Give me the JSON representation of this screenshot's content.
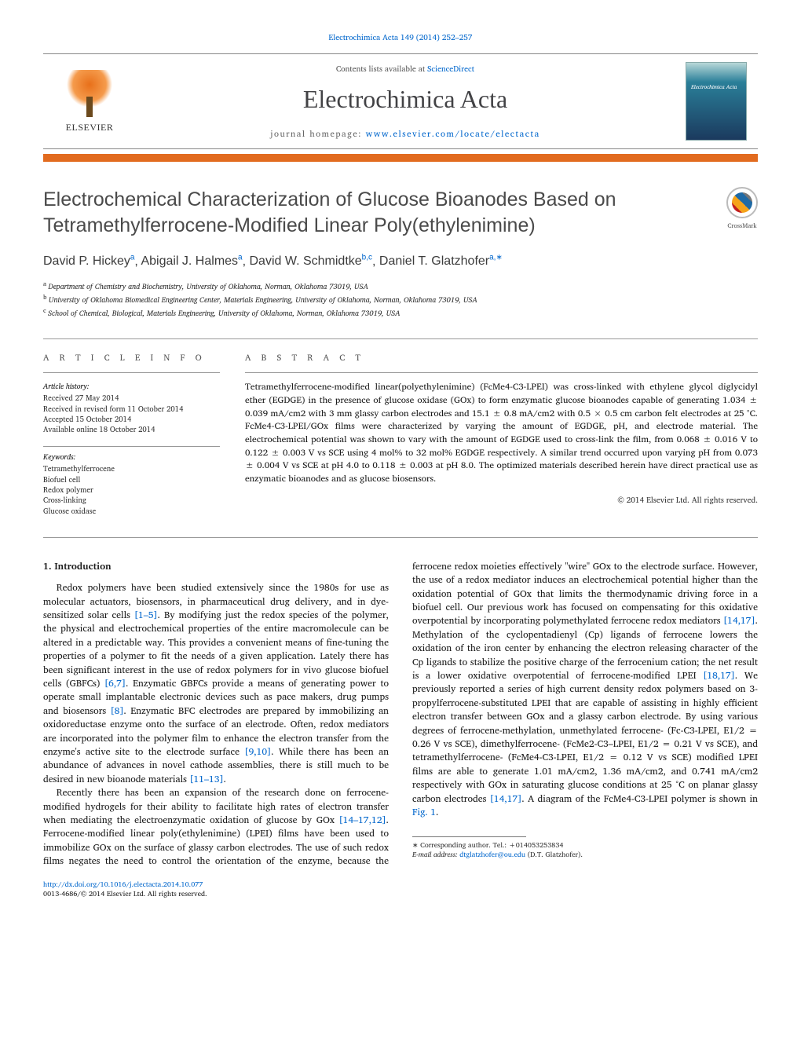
{
  "journal_ref_line": "Electrochimica Acta 149 (2014) 252–257",
  "header": {
    "contents_prefix": "Contents lists available at ",
    "contents_link": "ScienceDirect",
    "journal_name": "Electrochimica Acta",
    "homepage_prefix": "journal homepage: ",
    "homepage_link": "www.elsevier.com/locate/electacta",
    "elsevier_word": "ELSEVIER",
    "cover_title": "Electrochimica Acta"
  },
  "crossmark_label": "CrossMark",
  "title": "Electrochemical Characterization of Glucose Bioanodes Based on Tetramethylferrocene-Modified Linear Poly(ethylenimine)",
  "authors_html": "David P. Hickey",
  "authors": [
    {
      "name": "David P. Hickey",
      "sup": "a"
    },
    {
      "name": "Abigail J. Halmes",
      "sup": "a"
    },
    {
      "name": "David W. Schmidtke",
      "sup": "b,c"
    },
    {
      "name": "Daniel T. Glatzhofer",
      "sup": "a,",
      "star": true
    }
  ],
  "affiliations": [
    {
      "tag": "a",
      "text": "Department of Chemistry and Biochemistry, University of Oklahoma, Norman, Oklahoma 73019, USA"
    },
    {
      "tag": "b",
      "text": "University of Oklahoma Biomedical Engineering Center, Materials Engineering, University of Oklahoma, Norman, Oklahoma 73019, USA"
    },
    {
      "tag": "c",
      "text": "School of Chemical, Biological, Materials Engineering, University of Oklahoma, Norman, Oklahoma 73019, USA"
    }
  ],
  "article_info_label": "a r t i c l e   i n f o",
  "history_label": "Article history:",
  "history": [
    "Received 27 May 2014",
    "Received in revised form 11 October 2014",
    "Accepted 15 October 2014",
    "Available online 18 October 2014"
  ],
  "keywords_label": "Keywords:",
  "keywords": [
    "Tetramethylferrocene",
    "Biofuel cell",
    "Redox polymer",
    "Cross-linking",
    "Glucose oxidase"
  ],
  "abstract_label": "a b s t r a c t",
  "abstract_text": "Tetramethylferrocene-modified linear(polyethylenimine) (FcMe4-C3-LPEI) was cross-linked with ethylene glycol diglycidyl ether (EGDGE) in the presence of glucose oxidase (GOx) to form enzymatic glucose bioanodes capable of generating 1.034 ± 0.039 mA/cm2 with 3 mm glassy carbon electrodes and 15.1 ± 0.8 mA/cm2 with 0.5 × 0.5 cm carbon felt electrodes at 25 °C. FcMe4-C3-LPEI/GOx films were characterized by varying the amount of EGDGE, pH, and electrode material. The electrochemical potential was shown to vary with the amount of EGDGE used to cross-link the film, from 0.068 ± 0.016 V to 0.122 ± 0.003 V vs SCE using 4 mol% to 32 mol% EGDGE respectively. A similar trend occurred upon varying pH from 0.073 ± 0.004 V vs SCE at pH 4.0 to 0.118 ± 0.003 at pH 8.0. The optimized materials described herein have direct practical use as enzymatic bioanodes and as glucose biosensors.",
  "copyright": "© 2014 Elsevier Ltd. All rights reserved.",
  "intro_heading": "1. Introduction",
  "paragraphs": {
    "p1_a": "Redox polymers have been studied extensively since the 1980s for use as molecular actuators, biosensors, in pharmaceutical drug delivery, and in dye-sensitized solar cells ",
    "p1_ref1": "[1–5]",
    "p1_b": ". By modifying just the redox species of the polymer, the physical and electrochemical properties of the entire macromolecule can be altered in a predictable way. This provides a convenient means of fine-tuning the properties of a polymer to fit the needs of a given application. Lately there has been significant interest in the use of redox polymers for in vivo glucose biofuel cells (GBFCs) ",
    "p1_ref2": "[6,7]",
    "p1_c": ". Enzymatic GBFCs provide a means of generating power to operate small implantable electronic devices such as pace makers, drug pumps and biosensors ",
    "p1_ref3": "[8]",
    "p1_d": ". Enzymatic BFC electrodes are prepared by immobilizing an oxidoreductase enzyme onto the surface of an electrode. Often, redox mediators are incorporated into the polymer film to enhance the electron transfer from the enzyme's active site to the electrode surface ",
    "p1_ref4": "[9,10]",
    "p1_e": ". While there has been an abundance of advances in novel cathode assemblies, there is still much to be desired in new bioanode materials ",
    "p1_ref5": "[11–13]",
    "p1_f": ".",
    "p2_a": "Recently there has been an expansion of the research done on ferrocene-modified hydrogels for their ability to facilitate high rates of electron transfer when mediating the electroenzymatic oxidation of glucose by GOx ",
    "p2_ref1": "[14–17,12]",
    "p2_b": ". Ferrocene-modified linear poly(ethylenimine) (LPEI) films have been used to immobilize GOx on the surface of glassy carbon electrodes. The use of such redox films negates the need to control the orientation of the enzyme, because the ferrocene redox moieties effectively \"wire\" GOx to the electrode surface. However, the use of a redox mediator induces an electrochemical potential higher than the oxidation potential of GOx that limits the thermodynamic driving force in a biofuel cell. Our previous work has focused on compensating for this oxidative overpotential by incorporating polymethylated ferrocene redox mediators ",
    "p2_ref2": "[14,17]",
    "p2_c": ". Methylation of the cyclopentadienyl (Cp) ligands of ferrocene lowers the oxidation of the iron center by enhancing the electron releasing character of the Cp ligands to stabilize the positive charge of the ferrocenium cation; the net result is a lower oxidative overpotential of ferrocene-modified LPEI ",
    "p2_ref3": "[18,17]",
    "p2_d": ". We previously reported a series of high current density redox polymers based on 3-propylferrocene-substituted LPEI that are capable of assisting in highly efficient electron transfer between GOx and a glassy carbon electrode. By using various degrees of ferrocene-methylation, unmethylated ferrocene- (Fc-C3-LPEI, E1/2 = 0.26 V vs SCE), dimethylferrocene- (FcMe2-C3–LPEI, E1/2 = 0.21 V vs SCE), and tetramethylferrocene- (FcMe4-C3-LPEI, E1/2 = 0.12 V vs SCE) modified LPEI films are able to generate 1.01 mA/cm2, 1.36 mA/cm2, and 0.741 mA/cm2 respectively with GOx in saturating glucose conditions at 25 °C on planar glassy carbon electrodes ",
    "p2_ref4": "[14,17]",
    "p2_e": ". A diagram of the FcMe4-C3-LPEI polymer is shown in ",
    "p2_ref5": "Fig. 1",
    "p2_f": "."
  },
  "footnote": {
    "corr_label": "∗ Corresponding author. Tel.: +014053253834",
    "email_label": "E-mail address: ",
    "email": "dtglatzhofer@ou.edu",
    "email_tail": " (D.T. Glatzhofer)."
  },
  "doi": {
    "link": "http://dx.doi.org/10.1016/j.electacta.2014.10.077",
    "issn_line": "0013-4686/© 2014 Elsevier Ltd. All rights reserved."
  },
  "colors": {
    "accent_orange": "#e26b1f",
    "link_blue": "#0066cc",
    "text_gray": "#4a4a4a",
    "rule_gray": "#999999"
  }
}
